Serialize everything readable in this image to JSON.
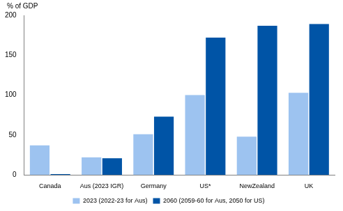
{
  "chart_data": {
    "type": "bar",
    "y_label": "% of GDP",
    "categories": [
      "Canada",
      "Aus (2023 IGR)",
      "Germany",
      "US*",
      "NewZealand",
      "UK"
    ],
    "series": [
      {
        "name": "2023 (2022-23 for Aus)",
        "color": "#9dc3f0",
        "values": [
          37,
          22,
          51,
          100,
          48,
          103
        ]
      },
      {
        "name": "2060 (2059-60 for Aus, 2050 for US)",
        "color": "#0054a6",
        "values": [
          1,
          21,
          73,
          172,
          187,
          189
        ]
      }
    ],
    "ylim": [
      0,
      200
    ],
    "yticks": [
      0,
      50,
      100,
      150,
      200
    ],
    "grid": false,
    "legend": "bottom"
  }
}
